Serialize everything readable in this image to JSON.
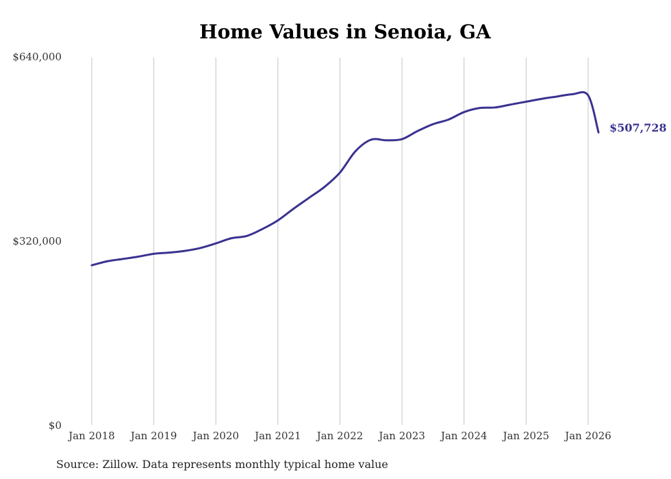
{
  "chart_data": {
    "type": "line",
    "title": "Home Values in Senoia, GA",
    "xlabel": "",
    "ylabel": "",
    "ylim": [
      0,
      640000
    ],
    "y_ticks": [
      {
        "value": 0,
        "label": "$0"
      },
      {
        "value": 320000,
        "label": "$320,000"
      },
      {
        "value": 640000,
        "label": "$640,000"
      }
    ],
    "x_ticks": [
      {
        "value": 2018,
        "label": "Jan 2018"
      },
      {
        "value": 2019,
        "label": "Jan 2019"
      },
      {
        "value": 2020,
        "label": "Jan 2020"
      },
      {
        "value": 2021,
        "label": "Jan 2021"
      },
      {
        "value": 2022,
        "label": "Jan 2022"
      },
      {
        "value": 2023,
        "label": "Jan 2023"
      },
      {
        "value": 2024,
        "label": "Jan 2024"
      },
      {
        "value": 2025,
        "label": "Jan 2025"
      },
      {
        "value": 2026,
        "label": "Jan 2026"
      }
    ],
    "grid": "vertical",
    "series": [
      {
        "name": "Typical home value",
        "color": "#3a3290",
        "x": [
          2018.0,
          2018.25,
          2018.5,
          2018.75,
          2019.0,
          2019.25,
          2019.5,
          2019.75,
          2020.0,
          2020.25,
          2020.5,
          2020.75,
          2021.0,
          2021.25,
          2021.5,
          2021.75,
          2022.0,
          2022.25,
          2022.5,
          2022.75,
          2023.0,
          2023.25,
          2023.5,
          2023.75,
          2024.0,
          2024.25,
          2024.5,
          2024.75,
          2025.0,
          2025.25,
          2025.5,
          2025.75,
          2026.0,
          2026.1667
        ],
        "values": [
          277000,
          284000,
          288000,
          292000,
          297000,
          299000,
          302000,
          307000,
          315000,
          324000,
          328000,
          340000,
          355000,
          375000,
          394000,
          413000,
          438000,
          475000,
          495000,
          494000,
          496000,
          510000,
          522000,
          530000,
          543000,
          550000,
          551000,
          556000,
          561000,
          566000,
          570000,
          574000,
          572000,
          507728
        ]
      }
    ],
    "end_label": "$507,728",
    "source": "Source: Zillow. Data represents monthly typical home value"
  }
}
